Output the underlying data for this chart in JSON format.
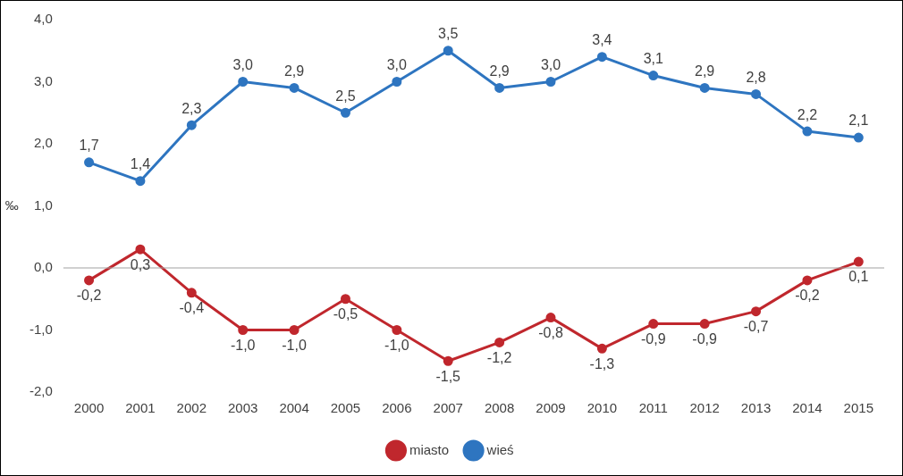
{
  "chart_data": {
    "type": "line",
    "ylabel": "‰",
    "categories": [
      "2000",
      "2001",
      "2002",
      "2003",
      "2004",
      "2005",
      "2006",
      "2007",
      "2008",
      "2009",
      "2010",
      "2011",
      "2012",
      "2013",
      "2014",
      "2015"
    ],
    "series": [
      {
        "name": "miasto",
        "color": "#c0272d",
        "values": [
          -0.2,
          0.3,
          -0.4,
          -1.0,
          -1.0,
          -0.5,
          -1.0,
          -1.5,
          -1.2,
          -0.8,
          -1.3,
          -0.9,
          -0.9,
          -0.7,
          -0.2,
          0.1
        ],
        "value_labels": [
          "-0,2",
          "0,3",
          "-0,4",
          "-1,0",
          "-1,0",
          "-0,5",
          "-1,0",
          "-1,5",
          "-1,2",
          "-0,8",
          "-1,3",
          "-0,9",
          "-0,9",
          "-0,7",
          "-0,2",
          "0,1"
        ]
      },
      {
        "name": "wieś",
        "color": "#2e75c0",
        "values": [
          1.7,
          1.4,
          2.3,
          3.0,
          2.9,
          2.5,
          3.0,
          3.5,
          2.9,
          3.0,
          3.4,
          3.1,
          2.9,
          2.8,
          2.2,
          2.1
        ],
        "value_labels": [
          "1,7",
          "1,4",
          "2,3",
          "3,0",
          "2,9",
          "2,5",
          "3,0",
          "3,5",
          "2,9",
          "3,0",
          "3,4",
          "3,1",
          "2,9",
          "2,8",
          "2,2",
          "2,1"
        ]
      }
    ],
    "ylim": [
      -2,
      4
    ],
    "yticks": [
      {
        "value": -2,
        "label": "-2,0"
      },
      {
        "value": -1,
        "label": "-1,0"
      },
      {
        "value": 0,
        "label": "0,0"
      },
      {
        "value": 1,
        "label": "1,0"
      },
      {
        "value": 2,
        "label": "2,0"
      },
      {
        "value": 3,
        "label": "3,0"
      },
      {
        "value": 4,
        "label": "4,0"
      }
    ],
    "ref_lines": [
      {
        "axis": "y",
        "value": 0,
        "color": "#a0a0a0"
      }
    ],
    "legend": "bottom",
    "marker": "circle",
    "line_style": "solid"
  }
}
